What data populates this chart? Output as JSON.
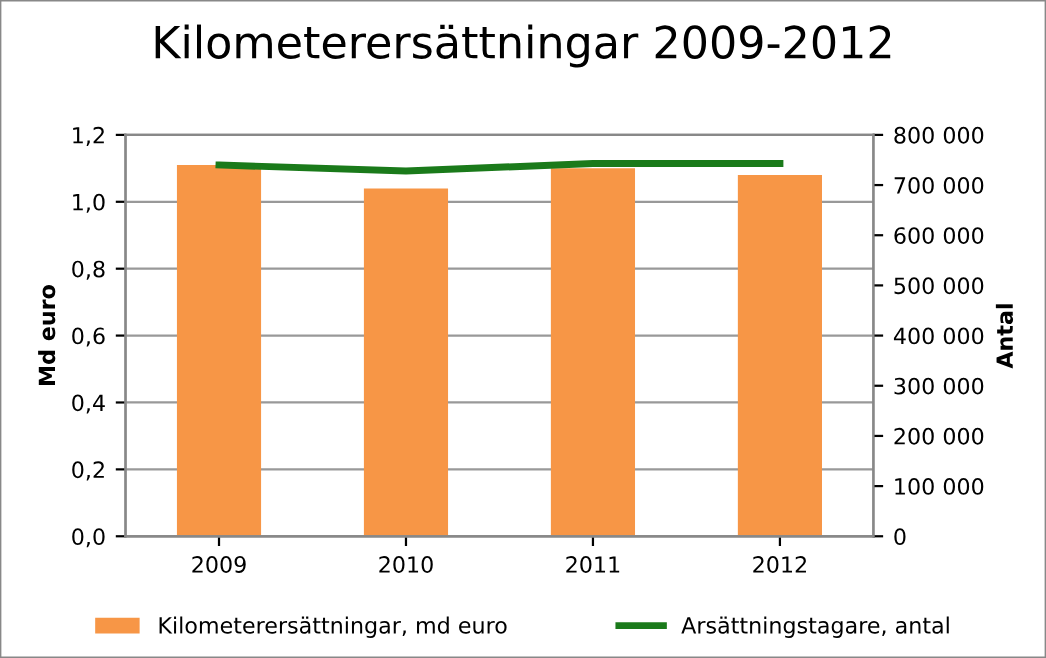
{
  "chart_data": {
    "type": "bar",
    "title": "Kilometerersättningar 2009-2012",
    "ylabel": "Md euro",
    "y2label": "Antal",
    "categories": [
      "2009",
      "2010",
      "2011",
      "2012"
    ],
    "series": [
      {
        "name": "Kilometerersättningar, md euro",
        "color": "#f79646",
        "values": [
          1.11,
          1.04,
          1.1,
          1.08
        ]
      },
      {
        "name": "Arsättningstagare, antal",
        "type": "line",
        "axis": "y2",
        "color": "#1a7a1a",
        "values": [
          740000,
          728000,
          743000,
          743000
        ]
      }
    ],
    "ylim": [
      0,
      1.2
    ],
    "yticks": [
      {
        "value": 0,
        "label": "0,0"
      },
      {
        "value": 0.2,
        "label": "0,2"
      },
      {
        "value": 0.4,
        "label": "0,4"
      },
      {
        "value": 0.6,
        "label": "0,6"
      },
      {
        "value": 0.8,
        "label": "0,8"
      },
      {
        "value": 1.0,
        "label": "1,0"
      },
      {
        "value": 1.2,
        "label": "1,2"
      }
    ],
    "y2lim": [
      0,
      800000
    ],
    "y2ticks": [
      0,
      {
        "value": 100000,
        "label": "100 000"
      },
      {
        "value": 200000,
        "label": "200 000"
      },
      {
        "value": 300000,
        "label": "300 000"
      },
      {
        "value": 400000,
        "label": "400 000"
      },
      {
        "value": 500000,
        "label": "500 000"
      },
      {
        "value": 600000,
        "label": "600 000"
      },
      {
        "value": 700000,
        "label": "700 000"
      },
      {
        "value": 800000,
        "label": "800 000"
      }
    ],
    "grid": "y",
    "legend": "bottom",
    "marker": "none"
  }
}
